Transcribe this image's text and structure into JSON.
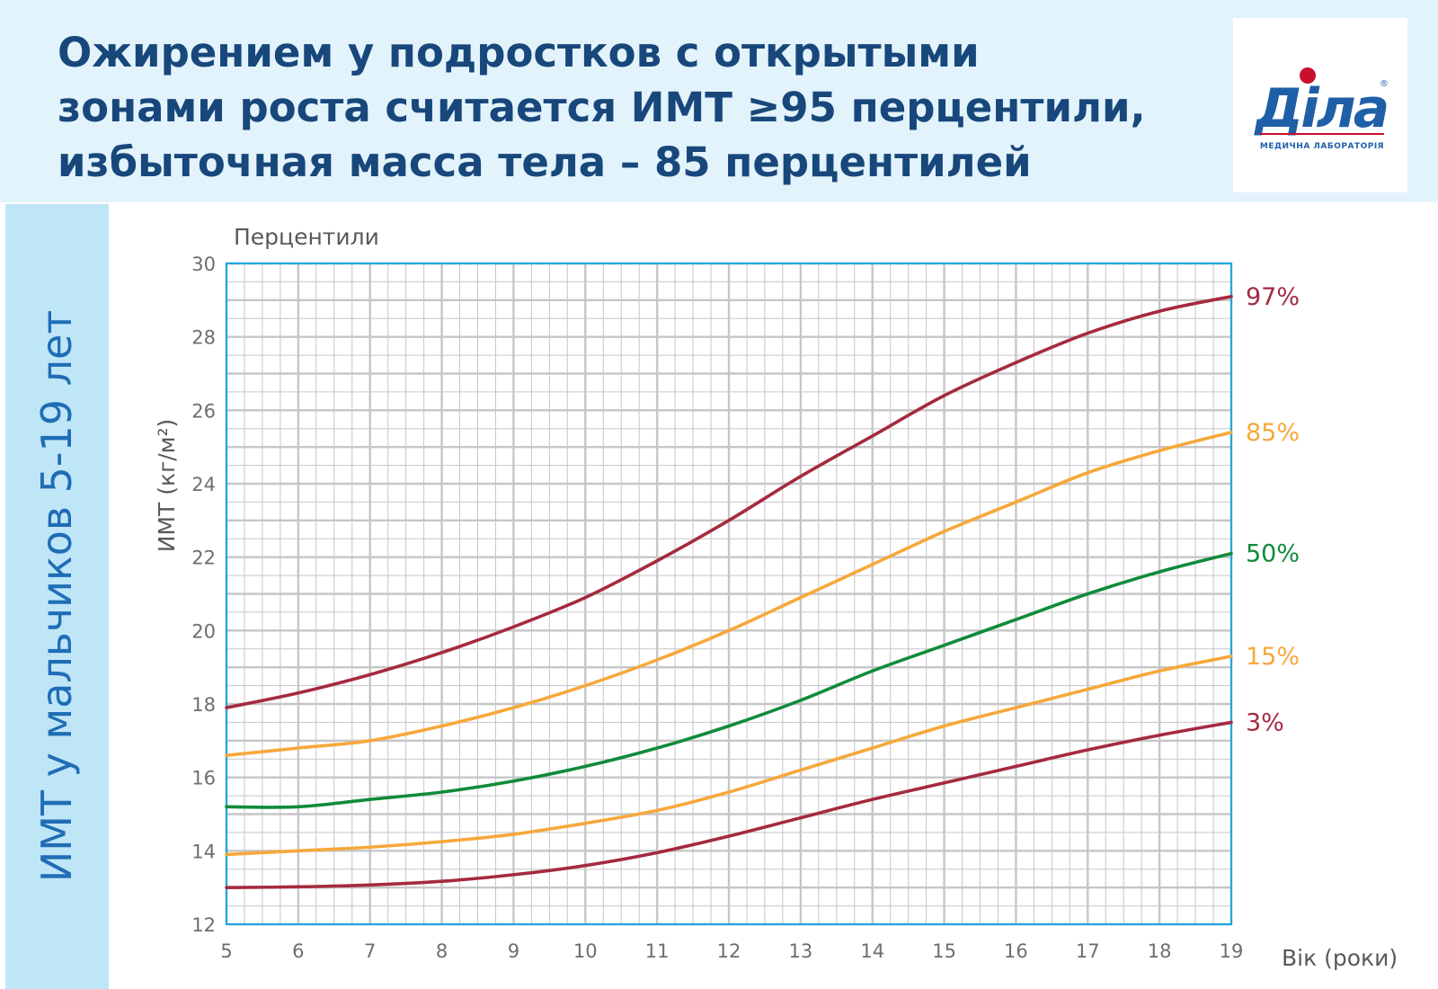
{
  "header": {
    "title_lines": [
      "Ожирением у подростков с открытыми",
      "зонами роста считается ИМТ ≥95 перцентили,",
      "избыточная масса тела – 85 перцентилей"
    ]
  },
  "logo": {
    "wordmark": "Діла",
    "tagline": "МЕДИЧНА ЛАБОРАТОРІЯ",
    "registered": "®",
    "colors": {
      "blue": "#1f5fa8",
      "red": "#c8102e"
    }
  },
  "side_label": "ИМТ у мальчиков 5-19 лет",
  "colors": {
    "dark_red": "#a52a3f",
    "orange": "#f6a83b",
    "green": "#108b3a",
    "grid": "#c6c6c6",
    "frame": "#1fa7e0",
    "title_blue": "#18477b",
    "side_blue": "#1f6db6"
  },
  "chart_data": {
    "type": "line",
    "title": "ИМТ у мальчиков 5-19 лет",
    "top_label": "Перцентили",
    "xlabel": "Вік (роки)",
    "ylabel": "ИМТ (кг/м²)",
    "xlim": [
      5,
      19
    ],
    "ylim": [
      12,
      30
    ],
    "x_ticks": [
      "5",
      "6",
      "7",
      "8",
      "9",
      "10",
      "11",
      "12",
      "13",
      "14",
      "15",
      "16",
      "17",
      "18",
      "19"
    ],
    "y_ticks": [
      "12",
      "14",
      "16",
      "18",
      "20",
      "22",
      "24",
      "26",
      "28",
      "30"
    ],
    "grid": true,
    "x": [
      5,
      6,
      7,
      8,
      9,
      10,
      11,
      12,
      13,
      14,
      15,
      16,
      17,
      18,
      19
    ],
    "series": [
      {
        "name": "97%",
        "color": "#a52a3f",
        "values": [
          17.9,
          18.3,
          18.8,
          19.4,
          20.1,
          20.9,
          21.9,
          23.0,
          24.2,
          25.3,
          26.4,
          27.3,
          28.1,
          28.7,
          29.1
        ]
      },
      {
        "name": "85%",
        "color": "#f6a83b",
        "values": [
          16.6,
          16.8,
          17.0,
          17.4,
          17.9,
          18.5,
          19.2,
          20.0,
          20.9,
          21.8,
          22.7,
          23.5,
          24.3,
          24.9,
          25.4
        ]
      },
      {
        "name": "50%",
        "color": "#108b3a",
        "values": [
          15.2,
          15.2,
          15.4,
          15.6,
          15.9,
          16.3,
          16.8,
          17.4,
          18.1,
          18.9,
          19.6,
          20.3,
          21.0,
          21.6,
          22.1
        ]
      },
      {
        "name": "15%",
        "color": "#f6a83b",
        "values": [
          13.9,
          14.0,
          14.1,
          14.25,
          14.45,
          14.75,
          15.1,
          15.6,
          16.2,
          16.8,
          17.4,
          17.9,
          18.4,
          18.9,
          19.3
        ]
      },
      {
        "name": "3%",
        "color": "#a52a3f",
        "values": [
          13.0,
          13.02,
          13.07,
          13.17,
          13.35,
          13.6,
          13.95,
          14.4,
          14.9,
          15.4,
          15.85,
          16.3,
          16.75,
          17.15,
          17.5
        ]
      }
    ]
  }
}
